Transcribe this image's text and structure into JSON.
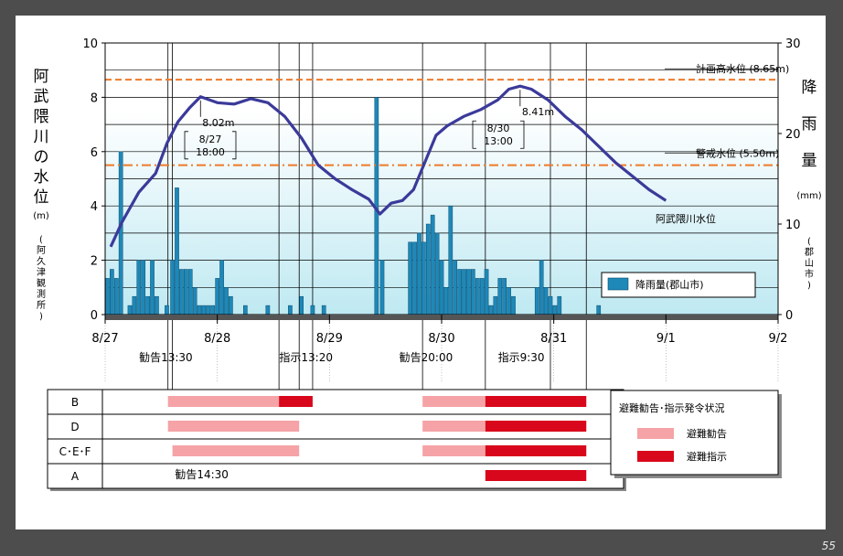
{
  "page_number": "55",
  "chart_data": {
    "type": "bar+line",
    "left_axis": {
      "label_vertical": "阿武隈川の水位",
      "unit": "(m)",
      "station_vertical": "(阿久津観測所)",
      "ylim": [
        0,
        10
      ],
      "ticks": [
        0,
        2,
        4,
        6,
        8,
        10
      ]
    },
    "right_axis": {
      "label_vertical": "降雨量",
      "unit": "(mm)",
      "station_vertical": "(郡山市)",
      "ylim": [
        0,
        30
      ],
      "ticks": [
        0,
        10,
        20,
        30
      ]
    },
    "x_ticks": [
      "8/27",
      "8/28",
      "8/29",
      "8/30",
      "8/31",
      "9/1",
      "9/2"
    ],
    "reference_lines": [
      {
        "label": "計画高水位 (8.65m)",
        "value": 8.65,
        "color": "#ee7a2a"
      },
      {
        "label": "警戒水位 (5.50m)",
        "value": 5.5,
        "color": "#ee7a2a"
      }
    ],
    "water_level": {
      "name": "阿武隈川水位",
      "color": "#3b3a9a",
      "points": [
        [
          0.05,
          2.5
        ],
        [
          0.15,
          3.4
        ],
        [
          0.3,
          4.5
        ],
        [
          0.45,
          5.2
        ],
        [
          0.55,
          6.3
        ],
        [
          0.65,
          7.1
        ],
        [
          0.75,
          7.6
        ],
        [
          0.85,
          8.02
        ],
        [
          1.0,
          7.8
        ],
        [
          1.15,
          7.75
        ],
        [
          1.3,
          7.95
        ],
        [
          1.45,
          7.8
        ],
        [
          1.6,
          7.3
        ],
        [
          1.75,
          6.5
        ],
        [
          1.9,
          5.5
        ],
        [
          2.05,
          5.0
        ],
        [
          2.2,
          4.6
        ],
        [
          2.35,
          4.25
        ],
        [
          2.45,
          3.7
        ],
        [
          2.55,
          4.1
        ],
        [
          2.65,
          4.2
        ],
        [
          2.75,
          4.6
        ],
        [
          2.85,
          5.6
        ],
        [
          2.95,
          6.6
        ],
        [
          3.05,
          6.95
        ],
        [
          3.2,
          7.3
        ],
        [
          3.35,
          7.55
        ],
        [
          3.5,
          7.9
        ],
        [
          3.6,
          8.3
        ],
        [
          3.7,
          8.41
        ],
        [
          3.8,
          8.3
        ],
        [
          3.95,
          7.9
        ],
        [
          4.1,
          7.3
        ],
        [
          4.25,
          6.8
        ],
        [
          4.4,
          6.2
        ],
        [
          4.55,
          5.6
        ],
        [
          4.7,
          5.1
        ],
        [
          4.85,
          4.6
        ],
        [
          5.0,
          4.2
        ]
      ]
    },
    "peaks": [
      {
        "value_label": "8.02m",
        "date": "8/27",
        "time": "18:00"
      },
      {
        "value_label": "8.41m",
        "date": "8/30",
        "time": "13:00"
      }
    ],
    "rainfall": {
      "name": "降雨量(郡山市)",
      "color": "#1e88b8",
      "bars": [
        [
          0.02,
          4
        ],
        [
          0.06,
          5
        ],
        [
          0.1,
          4
        ],
        [
          0.14,
          18
        ],
        [
          0.22,
          1
        ],
        [
          0.26,
          2
        ],
        [
          0.3,
          6
        ],
        [
          0.34,
          6
        ],
        [
          0.38,
          2
        ],
        [
          0.42,
          6
        ],
        [
          0.46,
          2
        ],
        [
          0.55,
          1
        ],
        [
          0.6,
          6
        ],
        [
          0.64,
          14
        ],
        [
          0.68,
          5
        ],
        [
          0.72,
          5
        ],
        [
          0.76,
          5
        ],
        [
          0.8,
          3
        ],
        [
          0.84,
          1
        ],
        [
          0.88,
          1
        ],
        [
          0.92,
          1
        ],
        [
          0.96,
          1
        ],
        [
          1.0,
          4
        ],
        [
          1.04,
          6
        ],
        [
          1.08,
          3
        ],
        [
          1.12,
          2
        ],
        [
          1.25,
          1
        ],
        [
          1.45,
          1
        ],
        [
          1.65,
          1
        ],
        [
          1.75,
          2
        ],
        [
          1.85,
          1
        ],
        [
          1.95,
          1
        ],
        [
          2.42,
          24
        ],
        [
          2.47,
          6
        ],
        [
          2.72,
          8
        ],
        [
          2.76,
          8
        ],
        [
          2.8,
          9
        ],
        [
          2.84,
          8
        ],
        [
          2.88,
          10
        ],
        [
          2.92,
          11
        ],
        [
          2.96,
          9
        ],
        [
          3.0,
          6
        ],
        [
          3.04,
          3
        ],
        [
          3.08,
          12
        ],
        [
          3.12,
          6
        ],
        [
          3.16,
          5
        ],
        [
          3.2,
          5
        ],
        [
          3.24,
          5
        ],
        [
          3.28,
          5
        ],
        [
          3.32,
          4
        ],
        [
          3.36,
          4
        ],
        [
          3.4,
          5
        ],
        [
          3.44,
          1
        ],
        [
          3.48,
          2
        ],
        [
          3.52,
          4
        ],
        [
          3.56,
          4
        ],
        [
          3.6,
          3
        ],
        [
          3.64,
          2
        ],
        [
          3.85,
          3
        ],
        [
          3.89,
          6
        ],
        [
          3.93,
          3
        ],
        [
          3.97,
          2
        ],
        [
          4.01,
          1
        ],
        [
          4.05,
          2
        ],
        [
          4.4,
          1
        ]
      ]
    },
    "legend_label": "降雨量(郡山市)"
  },
  "evacuation": {
    "rows": [
      "B",
      "D",
      "C･E･F",
      "A"
    ],
    "callouts": [
      "勧告13:30",
      "指示13:20",
      "勧告20:00",
      "指示9:30",
      "勧告14:30"
    ],
    "legend": {
      "title": "避難勧告･指示発令状況",
      "advisory": "避難勧告",
      "order": "避難指示",
      "advisory_color": "#f5a3a6",
      "order_color": "#d8071b"
    },
    "bars": [
      {
        "row": 0,
        "start": 0.56,
        "end": 1.55,
        "type": "advisory"
      },
      {
        "row": 0,
        "start": 1.55,
        "end": 1.85,
        "type": "order"
      },
      {
        "row": 0,
        "start": 2.83,
        "end": 3.39,
        "type": "advisory"
      },
      {
        "row": 0,
        "start": 3.39,
        "end": 4.29,
        "type": "order"
      },
      {
        "row": 1,
        "start": 0.56,
        "end": 1.73,
        "type": "advisory"
      },
      {
        "row": 1,
        "start": 2.83,
        "end": 3.39,
        "type": "advisory"
      },
      {
        "row": 1,
        "start": 3.39,
        "end": 4.29,
        "type": "order"
      },
      {
        "row": 2,
        "start": 0.6,
        "end": 1.73,
        "type": "advisory"
      },
      {
        "row": 2,
        "start": 2.83,
        "end": 3.39,
        "type": "advisory"
      },
      {
        "row": 2,
        "start": 3.39,
        "end": 4.29,
        "type": "order"
      },
      {
        "row": 3,
        "start": 3.39,
        "end": 4.29,
        "type": "order"
      }
    ]
  }
}
